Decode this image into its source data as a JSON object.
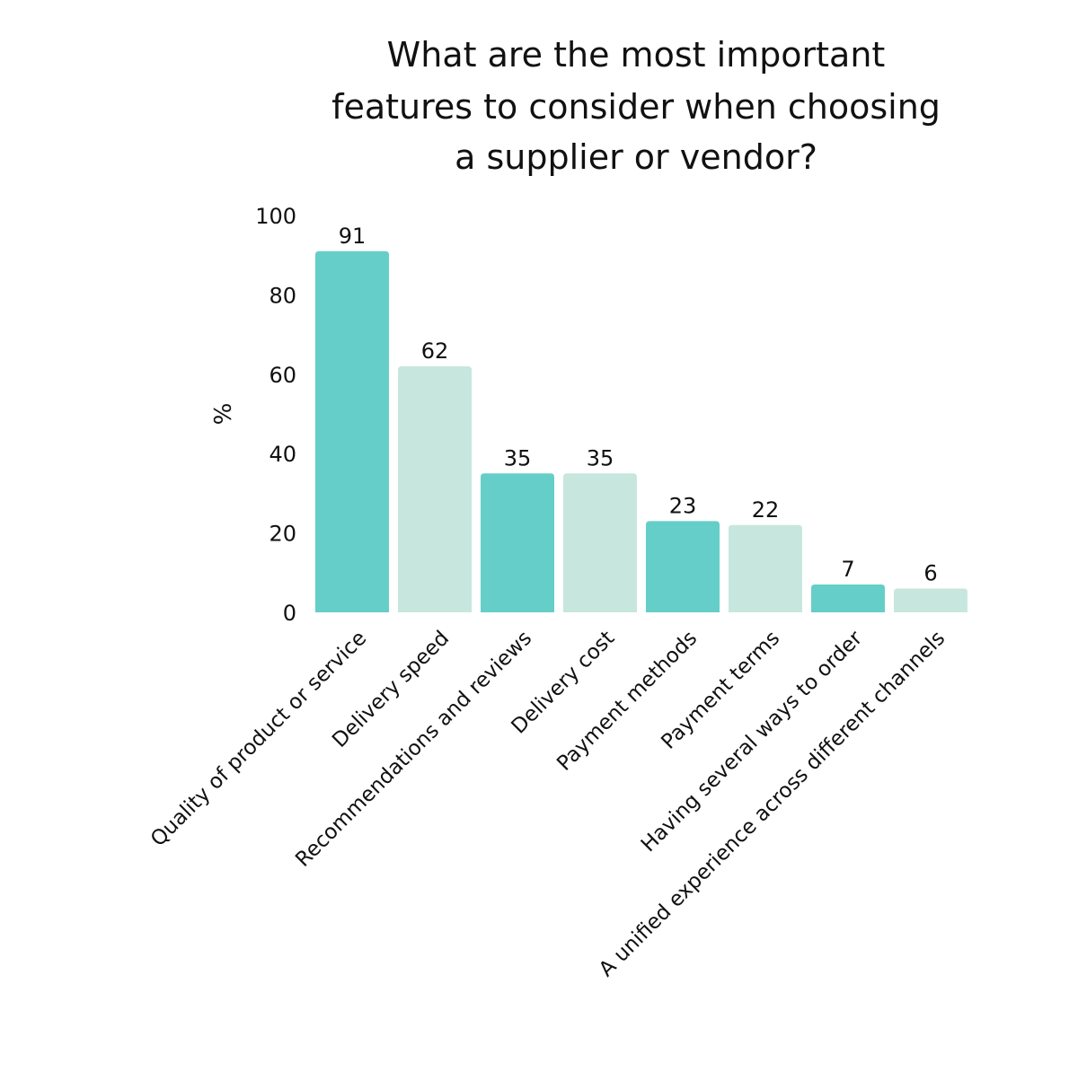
{
  "chart_data": {
    "type": "bar",
    "title_lines": [
      "What are the most important",
      "features to consider when choosing",
      "a supplier or vendor?"
    ],
    "ylabel": "%",
    "xlabel": "",
    "ylim": [
      0,
      100
    ],
    "yticks": [
      0,
      20,
      40,
      60,
      80,
      100
    ],
    "grid": false,
    "legend": "none",
    "categories": [
      "Quality of product or service",
      "Delivery speed",
      "Recommendations and reviews",
      "Delivery cost",
      "Payment methods",
      "Payment terms",
      "Having several ways to order",
      "A unified experience across different channels"
    ],
    "values": [
      91,
      62,
      35,
      35,
      23,
      22,
      7,
      6
    ],
    "colors": {
      "dark": "#66cec8",
      "light": "#c7e7de"
    },
    "bar_color_pattern": [
      "dark",
      "light"
    ]
  }
}
